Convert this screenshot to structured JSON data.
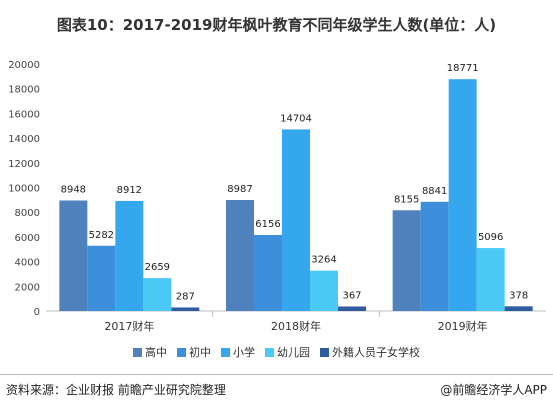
{
  "title": "图表10：2017-2019财年枫叶教育不同年级学生人数(单位：人)",
  "source": "资料来源：企业财报 前瞻产业研究院整理",
  "brand": "@前瞻经济学人APP",
  "chart_data": {
    "type": "bar",
    "categories": [
      "2017财年",
      "2018财年",
      "2019财年"
    ],
    "series": [
      {
        "name": "高中",
        "color": "#4f81bd",
        "values": [
          8948,
          8987,
          8155
        ]
      },
      {
        "name": "初中",
        "color": "#3d8fdc",
        "values": [
          5282,
          6156,
          8841
        ]
      },
      {
        "name": "小学",
        "color": "#34a7ef",
        "values": [
          8912,
          14704,
          18771
        ]
      },
      {
        "name": "幼儿园",
        "color": "#4bc9f7",
        "values": [
          2659,
          3264,
          5096
        ]
      },
      {
        "name": "外籍人员子女学校",
        "color": "#2e5c9e",
        "values": [
          287,
          367,
          378
        ]
      }
    ],
    "ylim": [
      0,
      20000
    ],
    "yticks": [
      0,
      2000,
      4000,
      6000,
      8000,
      10000,
      12000,
      14000,
      16000,
      18000,
      20000
    ],
    "grid": false,
    "legend_position": "bottom"
  }
}
